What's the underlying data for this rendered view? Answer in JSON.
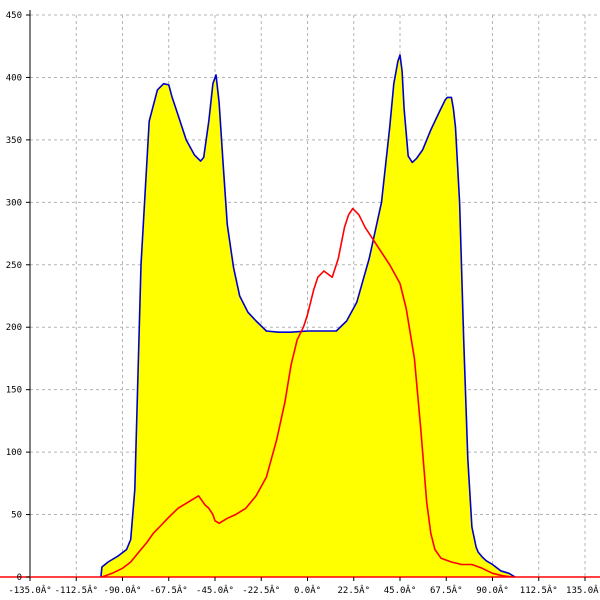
{
  "chart_data": {
    "type": "area",
    "title": "",
    "xlabel": "",
    "ylabel": "",
    "xlim": [
      -135,
      135
    ],
    "ylim": [
      0,
      450
    ],
    "grid": true,
    "x_ticks": [
      -135,
      -112.5,
      -90,
      -67.5,
      -45,
      -22.5,
      0,
      22.5,
      45,
      67.5,
      90,
      112.5,
      135
    ],
    "x_tick_labels": [
      "-135.0Â°",
      "-112.5Â°",
      "-90.0Â°",
      "-67.5Â°",
      "-45.0Â°",
      "-22.5Â°",
      "0.0Â°",
      "22.5Â°",
      "45.0Â°",
      "67.5Â°",
      "90.0Â°",
      "112.5Â°",
      "135.0Â°"
    ],
    "y_ticks": [
      0,
      50,
      100,
      150,
      200,
      250,
      300,
      350,
      400,
      450
    ],
    "y_tick_labels": [
      "0",
      "50",
      "100",
      "150",
      "200",
      "250",
      "300",
      "350",
      "400",
      "450"
    ],
    "series": [
      {
        "color": "#0000cc",
        "fill": "#ffff00",
        "x": [
          -100.5,
          -100,
          -97,
          -92,
          -88,
          -86,
          -84,
          -81,
          -77,
          -73,
          -70,
          -67.5,
          -66,
          -63,
          -59,
          -55,
          -52,
          -50.5,
          -48,
          -46,
          -44.5,
          -43,
          -41,
          -39,
          -36,
          -33,
          -29,
          -25,
          -20,
          -14,
          -8,
          0,
          7,
          14,
          19,
          24,
          30,
          36,
          40,
          42,
          44,
          45,
          46,
          47,
          49,
          51,
          53,
          56,
          60,
          64,
          67,
          68,
          70,
          71,
          72,
          74,
          76,
          78,
          80,
          82,
          83,
          85,
          87,
          90,
          94,
          98,
          101
        ],
        "y": [
          0,
          8,
          12,
          17,
          22,
          30,
          70,
          250,
          365,
          390,
          395,
          394,
          385,
          370,
          350,
          338,
          333,
          336,
          365,
          395,
          402,
          380,
          330,
          282,
          248,
          225,
          212,
          205,
          197,
          196,
          196,
          197,
          197,
          197,
          205,
          220,
          255,
          300,
          360,
          395,
          413,
          418,
          405,
          375,
          337,
          332,
          335,
          342,
          358,
          372,
          382,
          384,
          384,
          375,
          360,
          300,
          190,
          95,
          40,
          24,
          20,
          16,
          13,
          10,
          5,
          3,
          0
        ]
      },
      {
        "color": "#ff0000",
        "x": [
          -100,
          -95,
          -90,
          -86,
          -82,
          -78,
          -75,
          -72,
          -68,
          -63,
          -58,
          -53,
          -50,
          -48,
          -46,
          -45,
          -44,
          -43,
          -41,
          -39,
          -35,
          -30,
          -25,
          -20,
          -15,
          -11,
          -8,
          -5,
          -2,
          0,
          3,
          5,
          8,
          12,
          15,
          18,
          20,
          22,
          25,
          28,
          32,
          36,
          40,
          45,
          48,
          52,
          55,
          58,
          60,
          62,
          65,
          70,
          75,
          80,
          85,
          90,
          95,
          100
        ],
        "y": [
          0,
          3,
          7,
          12,
          20,
          28,
          35,
          40,
          47,
          55,
          60,
          65,
          58,
          55,
          50,
          45,
          44,
          43,
          45,
          47,
          50,
          55,
          65,
          80,
          110,
          140,
          170,
          190,
          200,
          210,
          230,
          240,
          245,
          240,
          255,
          280,
          290,
          295,
          290,
          280,
          270,
          260,
          250,
          235,
          215,
          175,
          120,
          60,
          35,
          22,
          15,
          12,
          10,
          10,
          7,
          3,
          1,
          0
        ]
      }
    ]
  }
}
